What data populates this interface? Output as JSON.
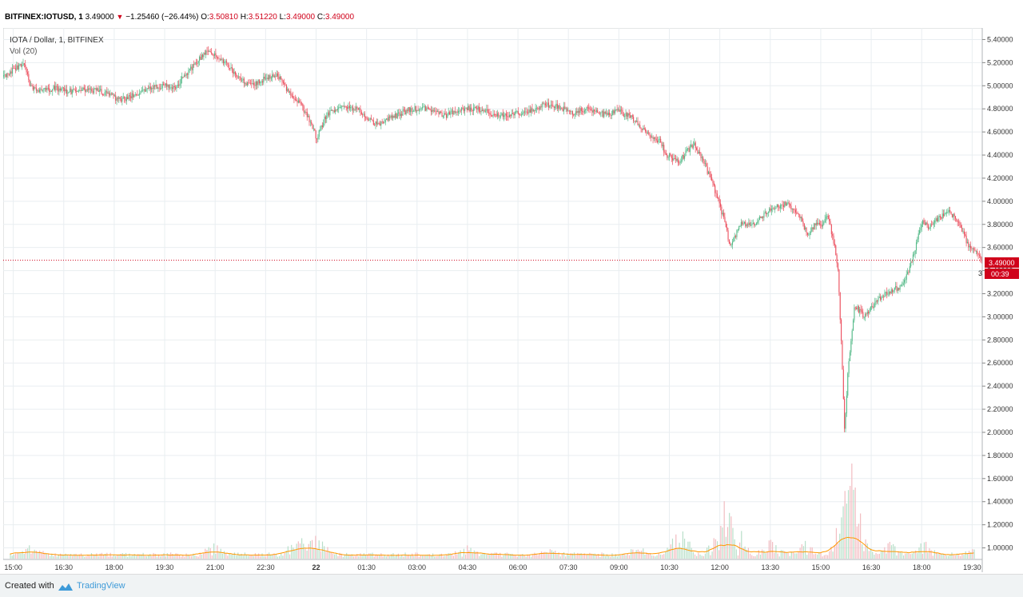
{
  "header": {
    "symbol": "BITFINEX:IOTUSD, 1",
    "last": "3.49000",
    "change": "−1.25460 (−26.44%)",
    "open_label": "O:",
    "open": "3.50810",
    "high_label": "H:",
    "high": "3.51220",
    "low_label": "L:",
    "low": "3.49000",
    "close_label": "C:",
    "close": "3.49000"
  },
  "legend": {
    "title": "IOTA / Dollar, 1, BITFINEX",
    "volume": "Vol (20)"
  },
  "price_badge": {
    "price": "3.49000",
    "countdown": "00:39",
    "partial_tick": "3"
  },
  "footer": {
    "created_with": "Created with",
    "brand": "TradingView"
  },
  "colors": {
    "up": "#53b987",
    "down": "#eb4d5c",
    "price_line": "#d0021b",
    "ma": "#ff9800",
    "grid": "#e9eef1",
    "brand": "#3d9ad8"
  },
  "chart_data": {
    "type": "line",
    "title": "IOTA / Dollar, 1, BITFINEX",
    "series_label": "Vol (20)",
    "y_ticks": [
      "5.40000",
      "5.20000",
      "5.00000",
      "4.80000",
      "4.60000",
      "4.40000",
      "4.20000",
      "4.00000",
      "3.80000",
      "3.60000",
      "3.40000",
      "3.20000",
      "3.00000",
      "2.80000",
      "2.60000",
      "2.40000",
      "2.20000",
      "2.00000",
      "1.80000",
      "1.60000",
      "1.40000",
      "1.20000",
      "1.00000"
    ],
    "ylim": [
      0.9,
      5.5
    ],
    "x_ticks": [
      "15:00",
      "16:30",
      "18:00",
      "19:30",
      "21:00",
      "22:30",
      "22",
      "01:30",
      "03:00",
      "04:30",
      "06:00",
      "07:30",
      "09:00",
      "10:30",
      "12:00",
      "13:30",
      "15:00",
      "16:30",
      "18:00",
      "19:30"
    ],
    "x_tick_hours": [
      0,
      1.5,
      3,
      4.5,
      6,
      7.5,
      9,
      10.5,
      12,
      13.5,
      15,
      16.5,
      18,
      19.5,
      21,
      22.5,
      24,
      25.5,
      27,
      28.5
    ],
    "xlim_hours": [
      -0.3,
      28.8
    ],
    "last_price": 3.49,
    "x_hours": [
      -0.3,
      0.3,
      0.5,
      0.8,
      1.2,
      1.6,
      2.0,
      2.5,
      3.0,
      3.2,
      3.6,
      4.0,
      4.5,
      4.8,
      5.1,
      5.6,
      5.8,
      6.0,
      6.3,
      6.6,
      7.0,
      7.4,
      7.8,
      8.1,
      8.5,
      8.8,
      9.0,
      9.3,
      9.8,
      10.2,
      10.8,
      11.2,
      11.8,
      12.3,
      12.8,
      13.3,
      13.8,
      14.3,
      14.8,
      15.3,
      15.8,
      16.2,
      16.6,
      17.0,
      17.4,
      17.6,
      18.0,
      18.4,
      18.8,
      19.2,
      19.4,
      19.8,
      20.2,
      20.5,
      20.7,
      20.9,
      21.1,
      21.3,
      21.6,
      22.0,
      22.3,
      22.6,
      23.0,
      23.3,
      23.6,
      23.8,
      24.0,
      24.2,
      24.4,
      24.5,
      24.6,
      24.7,
      24.8,
      25.0,
      25.3,
      25.7,
      26.0,
      26.4,
      26.6,
      26.8,
      27.0,
      27.2,
      27.5,
      27.8,
      28.1,
      28.4,
      28.6,
      28.8
    ],
    "close": [
      5.08,
      5.2,
      5.0,
      4.95,
      4.98,
      4.95,
      4.96,
      4.96,
      4.9,
      4.87,
      4.93,
      4.98,
      5.0,
      4.97,
      5.1,
      5.25,
      5.32,
      5.26,
      5.2,
      5.1,
      5.0,
      5.05,
      5.1,
      4.98,
      4.85,
      4.7,
      4.55,
      4.75,
      4.82,
      4.8,
      4.66,
      4.72,
      4.8,
      4.8,
      4.74,
      4.8,
      4.8,
      4.75,
      4.75,
      4.78,
      4.84,
      4.82,
      4.76,
      4.8,
      4.76,
      4.75,
      4.78,
      4.72,
      4.6,
      4.52,
      4.4,
      4.35,
      4.5,
      4.35,
      4.2,
      4.05,
      3.85,
      3.6,
      3.8,
      3.8,
      3.88,
      3.95,
      3.98,
      3.9,
      3.72,
      3.8,
      3.78,
      3.88,
      3.6,
      3.4,
      2.75,
      2.0,
      2.55,
      3.1,
      3.0,
      3.15,
      3.22,
      3.26,
      3.4,
      3.6,
      3.82,
      3.78,
      3.85,
      3.92,
      3.8,
      3.6,
      3.55,
      3.49
    ],
    "volume": {
      "x_hours": [
        0.5,
        6.0,
        8.5,
        9.0,
        13.5,
        16.0,
        18.5,
        19.8,
        21.0,
        21.4,
        22.5,
        23.5,
        24.7,
        24.8,
        24.9,
        25.1,
        26.0,
        27.0,
        28.7
      ],
      "values": [
        0.12,
        0.16,
        0.25,
        0.22,
        0.12,
        0.1,
        0.1,
        0.35,
        0.58,
        0.55,
        0.2,
        0.18,
        0.6,
        0.45,
        0.4,
        0.3,
        0.2,
        0.18,
        0.11
      ]
    }
  }
}
